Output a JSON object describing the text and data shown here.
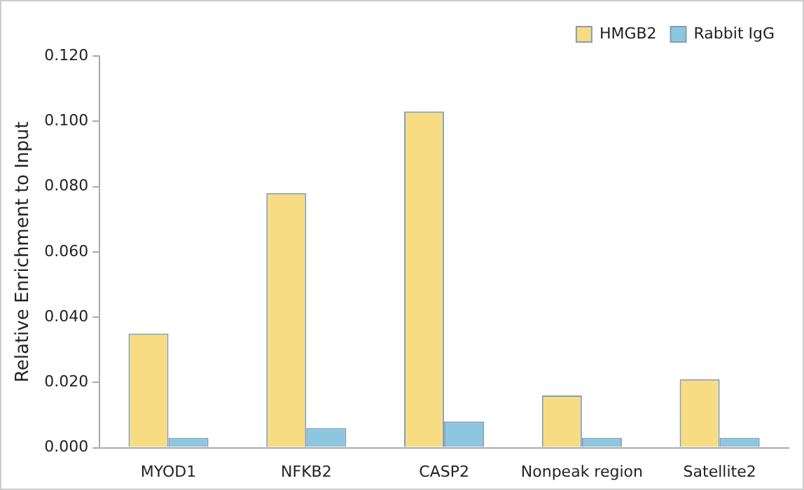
{
  "chart_data": {
    "type": "bar",
    "ylabel": "Relative Enrichment to Input",
    "categories": [
      "MYOD1",
      "NFKB2",
      "CASP2",
      "Nonpeak region",
      "Satellite2"
    ],
    "series": [
      {
        "name": "HMGB2",
        "color": "#f8dc84",
        "values": [
          0.035,
          0.078,
          0.103,
          0.016,
          0.021
        ]
      },
      {
        "name": "Rabbit IgG",
        "color": "#8ec6e0",
        "values": [
          0.003,
          0.006,
          0.008,
          0.003,
          0.003
        ]
      }
    ],
    "ylim": [
      0,
      0.12
    ],
    "yticks": [
      {
        "value": 0,
        "label": "0.000"
      },
      {
        "value": 0.02,
        "label": "0.020"
      },
      {
        "value": 0.04,
        "label": "0.040"
      },
      {
        "value": 0.06,
        "label": "0.060"
      },
      {
        "value": 0.08,
        "label": "0.080"
      },
      {
        "value": 0.1,
        "label": "0.100"
      },
      {
        "value": 0.12,
        "label": "0.120"
      }
    ],
    "grid": false,
    "legend": "top right"
  }
}
